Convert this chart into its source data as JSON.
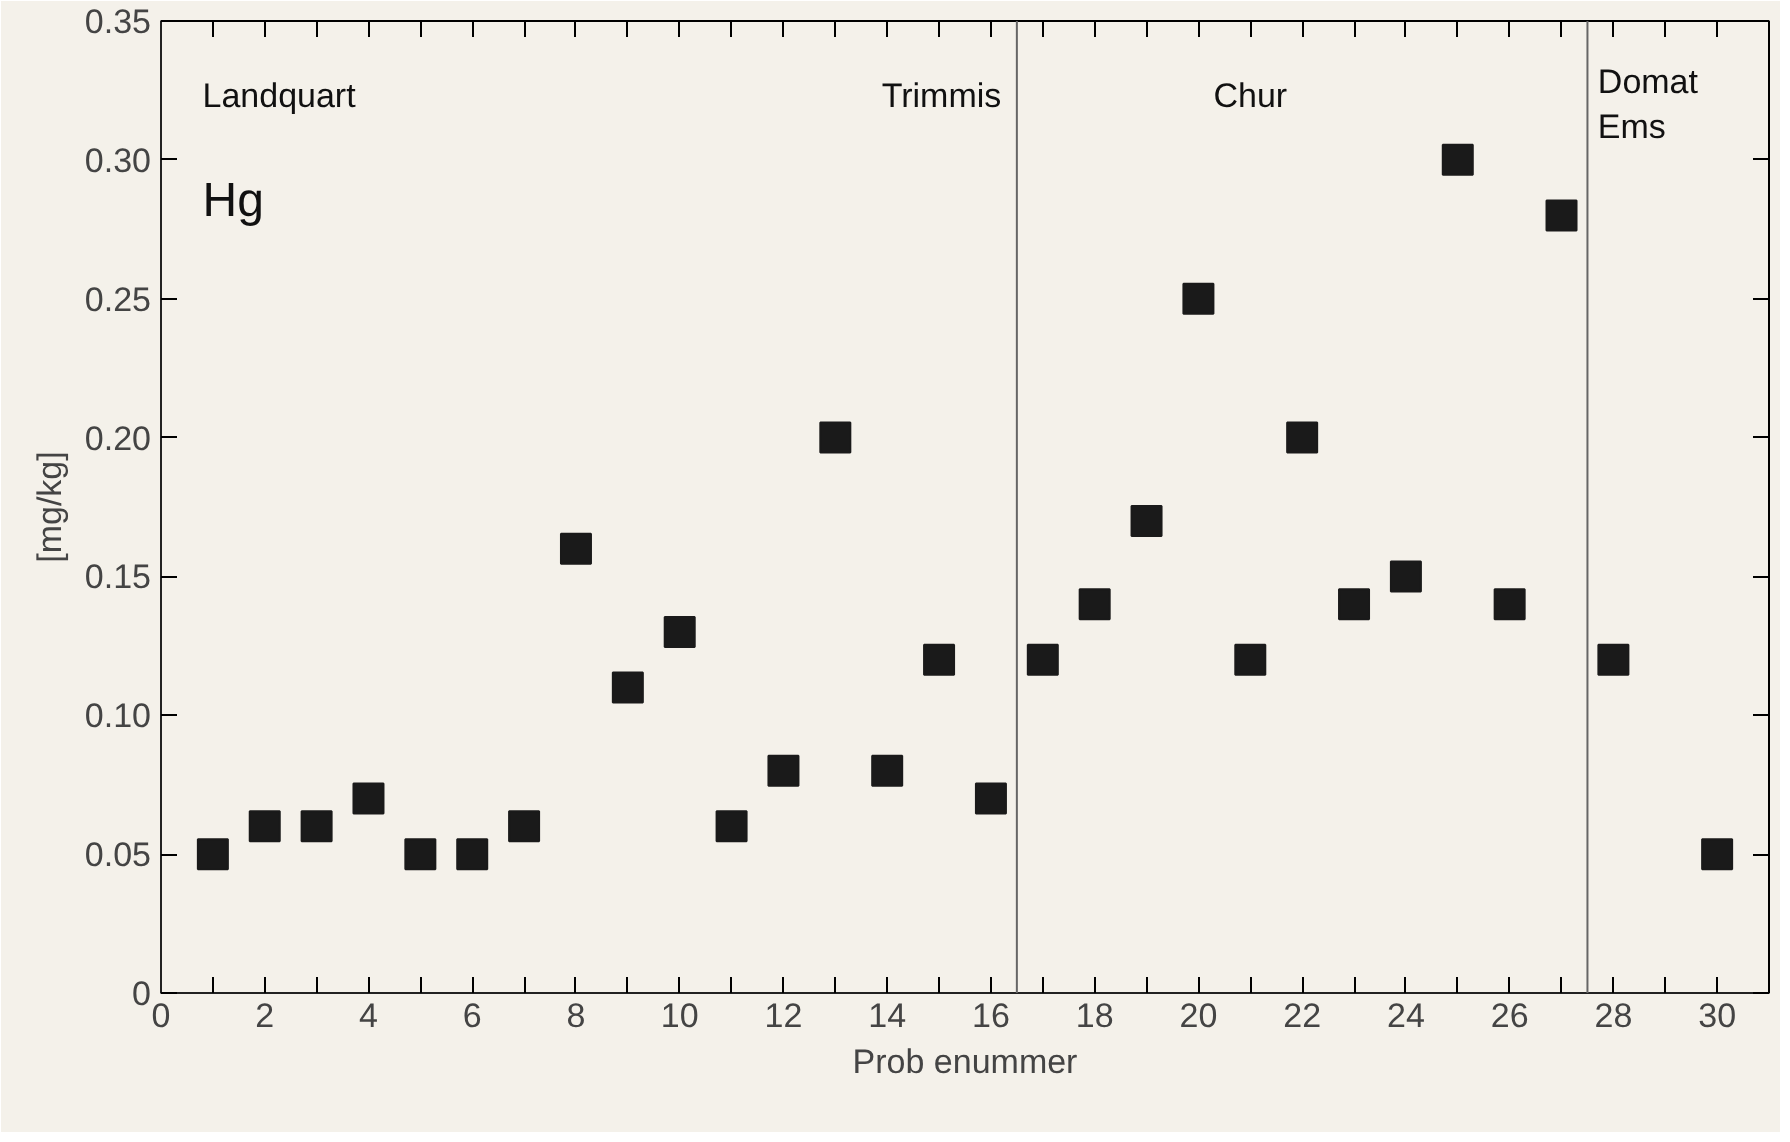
{
  "chart_data": {
    "type": "scatter",
    "xlabel": "Prob enummer",
    "ylabel": "[mg/kg]",
    "x": [
      1,
      2,
      3,
      4,
      5,
      6,
      7,
      8,
      9,
      10,
      11,
      12,
      13,
      14,
      15,
      16,
      17,
      18,
      19,
      20,
      21,
      22,
      23,
      24,
      25,
      26,
      27,
      28,
      30
    ],
    "values": [
      0.05,
      0.06,
      0.06,
      0.07,
      0.05,
      0.05,
      0.06,
      0.16,
      0.11,
      0.13,
      0.06,
      0.08,
      0.2,
      0.08,
      0.12,
      0.07,
      0.12,
      0.14,
      0.17,
      0.25,
      0.12,
      0.2,
      0.14,
      0.15,
      0.3,
      0.14,
      0.28,
      0.12,
      0.05
    ],
    "color": "#1a1a1a",
    "marker": "square",
    "xlim": [
      0,
      31
    ],
    "ylim": [
      0,
      0.35
    ],
    "xticks": [
      0,
      {
        "value": 1,
        "label": null
      },
      2,
      {
        "value": 3,
        "label": null
      },
      4,
      {
        "value": 5,
        "label": null
      },
      6,
      {
        "value": 7,
        "label": null
      },
      8,
      {
        "value": 9,
        "label": null
      },
      10,
      {
        "value": 11,
        "label": null
      },
      12,
      {
        "value": 13,
        "label": null
      },
      14,
      {
        "value": 15,
        "label": null
      },
      16,
      {
        "value": 17,
        "label": null
      },
      18,
      {
        "value": 19,
        "label": null
      },
      20,
      {
        "value": 21,
        "label": null
      },
      22,
      {
        "value": 23,
        "label": null
      },
      24,
      {
        "value": 25,
        "label": null
      },
      26,
      {
        "value": 27,
        "label": null
      },
      28,
      {
        "value": 29,
        "label": null
      },
      30
    ],
    "yticks": [
      0,
      {
        "value": 0.05,
        "label": "0.05"
      },
      {
        "value": 0.1,
        "label": "0.10"
      },
      {
        "value": 0.15,
        "label": "0.15"
      },
      {
        "value": 0.2,
        "label": "0.20"
      },
      {
        "value": 0.25,
        "label": "0.25"
      },
      {
        "value": 0.3,
        "label": "0.30"
      },
      {
        "value": 0.35,
        "label": "0.35"
      }
    ],
    "ref_lines": [
      {
        "axis": "x",
        "value": 16.5,
        "color": "#666666"
      },
      {
        "axis": "x",
        "value": 27.5,
        "color": "#666666"
      }
    ],
    "annotations": [
      "Landquart",
      "Trimmis",
      "Chur",
      "Domat\nEms",
      "Hg"
    ],
    "grid": false
  }
}
